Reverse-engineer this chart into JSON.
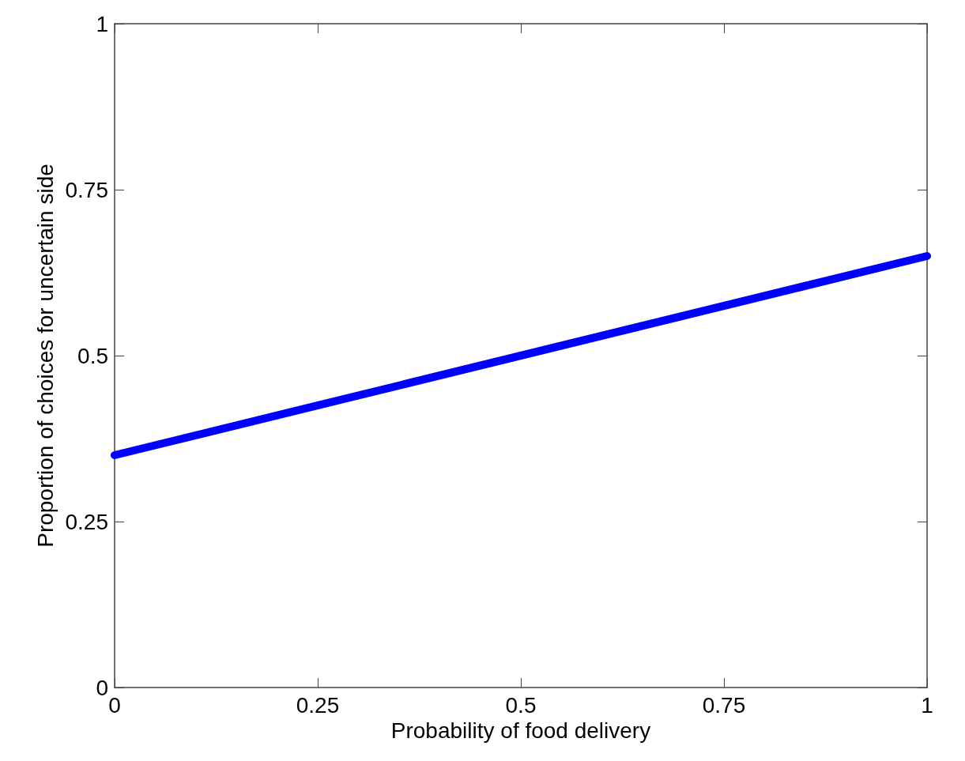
{
  "chart_data": {
    "type": "line",
    "xlabel": "Probability of food delivery",
    "ylabel": "Proportion of choices for uncertain side",
    "x": [
      0,
      1
    ],
    "series": [
      {
        "color": "#0000ff",
        "values": [
          0.35,
          0.65
        ]
      }
    ],
    "xlim": [
      0,
      1
    ],
    "xticks": [
      0,
      0.25,
      0.5,
      0.75,
      1
    ],
    "ylim": [
      0,
      1
    ],
    "yticks": [
      0,
      0.25,
      0.5,
      0.75,
      1
    ],
    "grid": false,
    "line_style": "solid"
  }
}
